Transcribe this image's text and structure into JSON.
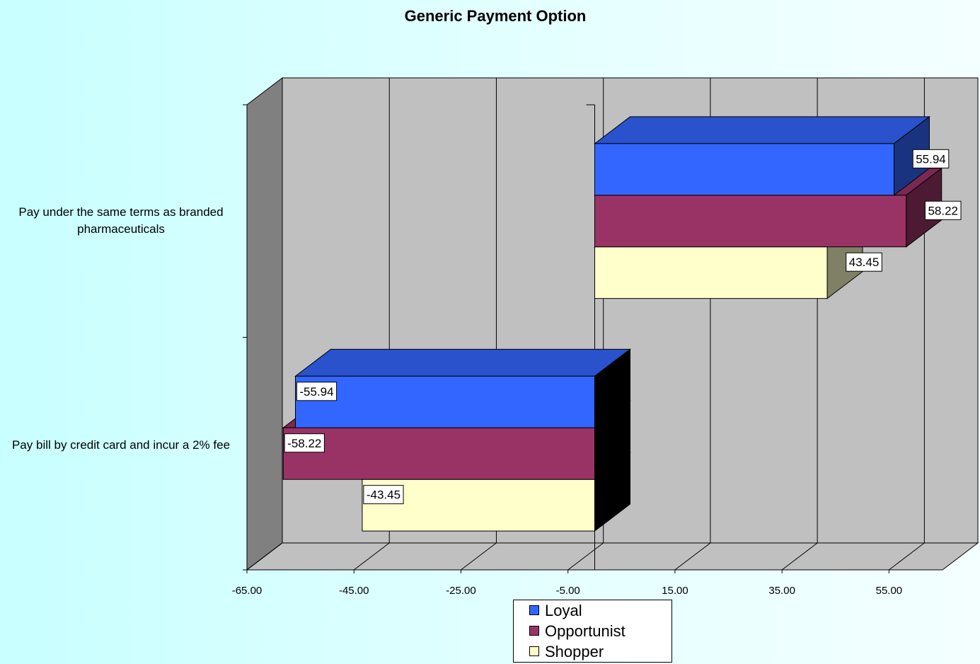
{
  "chart_data": {
    "type": "bar3d_horizontal",
    "title": "Generic Payment Option",
    "categories": [
      "Pay under the same terms as branded pharmaceuticals",
      "Pay bill by credit card and incur a 2% fee"
    ],
    "series": [
      {
        "name": "Loyal",
        "color": "#3366ff",
        "values": [
          55.94,
          -55.94
        ]
      },
      {
        "name": "Opportunist",
        "color": "#993366",
        "values": [
          58.22,
          -58.22
        ]
      },
      {
        "name": "Shopper",
        "color": "#ffffcc",
        "values": [
          43.45,
          -43.45
        ]
      }
    ],
    "xlim": [
      -65,
      65
    ],
    "xticks": [
      {
        "value": -65,
        "label": "-65.00"
      },
      {
        "value": -45,
        "label": "-45.00"
      },
      {
        "value": -25,
        "label": "-25.00"
      },
      {
        "value": -5,
        "label": "-5.00"
      },
      {
        "value": 15,
        "label": "15.00"
      },
      {
        "value": 35,
        "label": "35.00"
      },
      {
        "value": 55,
        "label": "55.00"
      }
    ],
    "grid": true,
    "legend": "bottom"
  }
}
